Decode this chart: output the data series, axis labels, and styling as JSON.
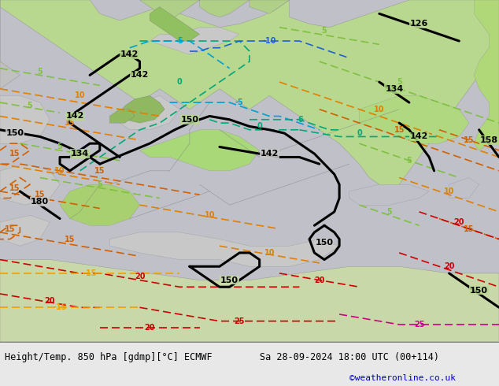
{
  "title_left": "Height/Temp. 850 hPa [gdmp][°C] ECMWF",
  "title_right": "Sa 28-09-2024 18:00 UTC (00+114)",
  "credit": "©weatheronline.co.uk",
  "bg_map_color": "#c8c8c8",
  "land_color": "#b8d898",
  "land_color2": "#a8d070",
  "sea_color": "#c0c0c0",
  "fig_width": 6.34,
  "fig_height": 4.9,
  "dpi": 100,
  "bottom_bar_color": "#f0f0f0"
}
